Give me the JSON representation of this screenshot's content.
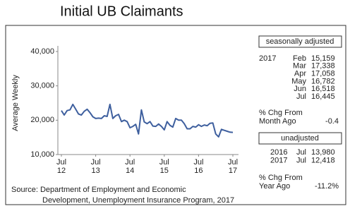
{
  "chart_data": {
    "type": "line",
    "title": "Initial UB Claimants",
    "y_label": "Average Weekly",
    "categories": [
      "Jul 12",
      null,
      null,
      null,
      null,
      null,
      null,
      null,
      null,
      null,
      null,
      null,
      "Jul 13",
      null,
      null,
      null,
      null,
      null,
      null,
      null,
      null,
      null,
      null,
      null,
      "Jul 14",
      null,
      null,
      null,
      null,
      null,
      null,
      null,
      null,
      null,
      null,
      null,
      "Jul 15",
      null,
      null,
      null,
      null,
      null,
      null,
      null,
      null,
      null,
      null,
      null,
      "Jul 16",
      null,
      null,
      null,
      null,
      null,
      null,
      null,
      null,
      null,
      null,
      null,
      "Jul 17"
    ],
    "series": [
      {
        "name": "Initial UB Claimants",
        "color": "#3e5f9e",
        "values": [
          22800,
          21500,
          22800,
          23000,
          24600,
          23200,
          21800,
          21500,
          22600,
          23200,
          22200,
          21000,
          20500,
          20600,
          20500,
          21300,
          21100,
          24600,
          20500,
          21300,
          21700,
          19600,
          20000,
          19600,
          17800,
          18200,
          18800,
          16000,
          23000,
          19500,
          19000,
          19600,
          18300,
          18200,
          18900,
          18200,
          17200,
          19600,
          18500,
          18000,
          20500,
          20000,
          20000,
          19000,
          17500,
          17500,
          18200,
          18000,
          18700,
          18200,
          18600,
          18400,
          19100,
          19200,
          16000,
          15159,
          17338,
          17058,
          16782,
          16518,
          16445
        ]
      }
    ],
    "ylim": [
      10000,
      40000
    ],
    "yticks": [
      {
        "value": 10000,
        "label": "10,000"
      },
      {
        "value": 20000,
        "label": "20,000"
      },
      {
        "value": 30000,
        "label": "30,000"
      },
      {
        "value": 40000,
        "label": "40,000"
      }
    ],
    "grid": false,
    "source": [
      "Source: Department of Employment and Economic",
      "Development, Unemployment Insurance Program, 2017"
    ],
    "seasonally_adjusted": {
      "heading": "seasonally adjusted",
      "year": "2017",
      "months": [
        "Feb",
        "Mar",
        "Apr",
        "May",
        "Jun",
        "Jul"
      ],
      "values": [
        "15,159",
        "17,338",
        "17,058",
        "16,782",
        "16,518",
        "16,445"
      ],
      "change_label": [
        "% Chg From",
        "Month Ago"
      ],
      "change": "-0.4"
    },
    "unadjusted": {
      "heading": "unadjusted",
      "rows": [
        [
          "2016",
          "Jul",
          "13,980"
        ],
        [
          "2017",
          "Jul",
          "12,418"
        ]
      ],
      "change_label": [
        "% Chg From",
        "Year Ago"
      ],
      "change": "-11.2%"
    }
  }
}
